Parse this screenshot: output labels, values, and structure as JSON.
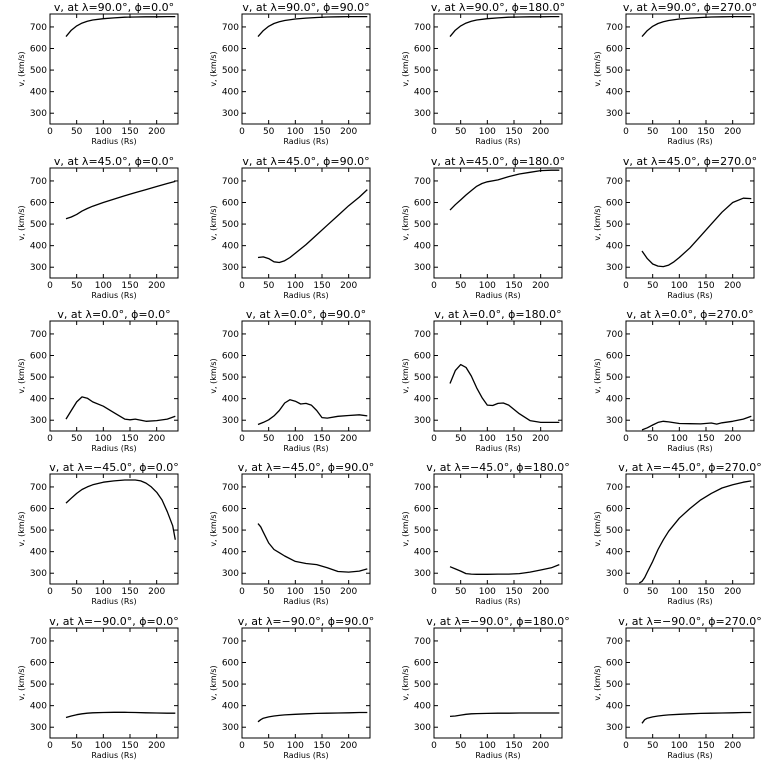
{
  "panel_titles": [
    "v, at λ=90.0°, ϕ=0.0°",
    "v, at λ=90.0°, ϕ=90.0°",
    "v, at λ=90.0°, ϕ=180.0°",
    "v, at λ=90.0°, ϕ=270.0°",
    "v, at λ=45.0°, ϕ=0.0°",
    "v, at λ=45.0°, ϕ=90.0°",
    "v, at λ=45.0°, ϕ=180.0°",
    "v, at λ=45.0°, ϕ=270.0°",
    "v, at λ=0.0°, ϕ=0.0°",
    "v, at λ=0.0°, ϕ=90.0°",
    "v, at λ=0.0°, ϕ=180.0°",
    "v, at λ=0.0°, ϕ=270.0°",
    "v, at λ=−45.0°, ϕ=0.0°",
    "v, at λ=−45.0°, ϕ=90.0°",
    "v, at λ=−45.0°, ϕ=180.0°",
    "v, at λ=−45.0°, ϕ=270.0°",
    "v, at λ=−90.0°, ϕ=0.0°",
    "v, at λ=−90.0°, ϕ=90.0°",
    "v, at λ=−90.0°, ϕ=180.0°",
    "v, at λ=−90.0°, ϕ=270.0°"
  ],
  "chart_data": {
    "type": "line",
    "layout": "5 rows x 4 columns of small-multiple panels",
    "xlabel": "Radius (Rs)",
    "ylabel": "v, (km/s)",
    "xlim": [
      0,
      240
    ],
    "ylim": [
      250,
      760
    ],
    "xticks": [
      0,
      50,
      100,
      150,
      200
    ],
    "yticks": [
      300,
      400,
      500,
      600,
      700
    ],
    "series": [
      {
        "x": [
          30,
          40,
          50,
          60,
          70,
          80,
          100,
          120,
          140,
          160,
          180,
          200,
          220,
          235
        ],
        "values": [
          655,
          685,
          705,
          718,
          726,
          732,
          738,
          742,
          745,
          746,
          747,
          747,
          748,
          748
        ]
      },
      {
        "x": [
          30,
          40,
          50,
          60,
          70,
          80,
          100,
          120,
          140,
          160,
          180,
          200,
          220,
          235
        ],
        "values": [
          655,
          683,
          703,
          716,
          724,
          730,
          737,
          741,
          744,
          746,
          747,
          748,
          748,
          748
        ]
      },
      {
        "x": [
          30,
          40,
          50,
          60,
          70,
          80,
          100,
          120,
          140,
          160,
          180,
          200,
          220,
          235
        ],
        "values": [
          655,
          685,
          705,
          718,
          726,
          732,
          738,
          742,
          745,
          746,
          747,
          747,
          748,
          748
        ]
      },
      {
        "x": [
          30,
          40,
          50,
          60,
          70,
          80,
          100,
          120,
          140,
          160,
          180,
          200,
          220,
          235
        ],
        "values": [
          655,
          683,
          703,
          716,
          724,
          730,
          737,
          741,
          744,
          746,
          747,
          748,
          748,
          748
        ]
      },
      {
        "x": [
          30,
          40,
          50,
          60,
          70,
          80,
          100,
          120,
          140,
          160,
          180,
          200,
          220,
          235
        ],
        "values": [
          525,
          533,
          545,
          560,
          572,
          583,
          600,
          616,
          631,
          646,
          660,
          674,
          688,
          698
        ]
      },
      {
        "x": [
          30,
          40,
          50,
          60,
          70,
          80,
          90,
          100,
          120,
          140,
          160,
          180,
          200,
          220,
          235
        ],
        "values": [
          345,
          348,
          340,
          325,
          322,
          330,
          345,
          365,
          405,
          450,
          495,
          540,
          585,
          625,
          660
        ]
      },
      {
        "x": [
          30,
          40,
          50,
          60,
          70,
          80,
          90,
          100,
          120,
          140,
          160,
          180,
          200,
          220,
          235
        ],
        "values": [
          565,
          590,
          612,
          635,
          655,
          675,
          688,
          696,
          705,
          720,
          732,
          740,
          748,
          750,
          750
        ]
      },
      {
        "x": [
          30,
          40,
          50,
          60,
          70,
          80,
          90,
          100,
          120,
          140,
          160,
          180,
          200,
          220,
          235
        ],
        "values": [
          375,
          340,
          315,
          305,
          303,
          310,
          325,
          345,
          390,
          445,
          500,
          555,
          600,
          620,
          618
        ]
      },
      {
        "x": [
          30,
          40,
          50,
          60,
          70,
          80,
          100,
          120,
          140,
          150,
          160,
          180,
          200,
          220,
          235
        ],
        "values": [
          305,
          345,
          385,
          408,
          402,
          385,
          365,
          335,
          305,
          302,
          305,
          295,
          298,
          305,
          318
        ]
      },
      {
        "x": [
          30,
          40,
          50,
          60,
          70,
          80,
          90,
          100,
          110,
          120,
          130,
          140,
          150,
          160,
          180,
          200,
          220,
          235
        ],
        "values": [
          280,
          290,
          302,
          320,
          345,
          380,
          395,
          388,
          375,
          378,
          370,
          345,
          312,
          310,
          318,
          322,
          325,
          320
        ]
      },
      {
        "x": [
          30,
          40,
          50,
          60,
          70,
          80,
          90,
          100,
          110,
          120,
          130,
          140,
          160,
          180,
          200,
          220,
          235
        ],
        "values": [
          470,
          530,
          558,
          545,
          505,
          450,
          405,
          370,
          368,
          378,
          380,
          370,
          330,
          298,
          290,
          290,
          290
        ]
      },
      {
        "x": [
          30,
          40,
          50,
          60,
          70,
          80,
          100,
          120,
          140,
          160,
          170,
          180,
          200,
          220,
          235
        ],
        "values": [
          255,
          265,
          278,
          290,
          295,
          292,
          285,
          284,
          283,
          287,
          282,
          288,
          295,
          305,
          318
        ]
      },
      {
        "x": [
          30,
          40,
          50,
          60,
          70,
          80,
          100,
          120,
          140,
          160,
          170,
          180,
          190,
          200,
          210,
          220,
          230,
          235
        ],
        "values": [
          625,
          648,
          670,
          688,
          700,
          710,
          722,
          728,
          732,
          732,
          728,
          718,
          700,
          675,
          640,
          585,
          520,
          455
        ]
      },
      {
        "x": [
          30,
          35,
          40,
          50,
          60,
          70,
          80,
          100,
          120,
          140,
          160,
          180,
          200,
          220,
          235
        ],
        "values": [
          530,
          515,
          490,
          440,
          410,
          395,
          380,
          355,
          345,
          340,
          325,
          308,
          305,
          310,
          320
        ]
      },
      {
        "x": [
          30,
          40,
          50,
          60,
          70,
          80,
          100,
          120,
          140,
          160,
          180,
          200,
          220,
          235
        ],
        "values": [
          330,
          320,
          310,
          298,
          296,
          295,
          295,
          296,
          296,
          298,
          305,
          315,
          325,
          340
        ]
      },
      {
        "x": [
          25,
          30,
          35,
          40,
          50,
          60,
          70,
          80,
          100,
          120,
          140,
          160,
          180,
          200,
          220,
          235
        ],
        "values": [
          255,
          262,
          280,
          305,
          355,
          410,
          455,
          495,
          555,
          600,
          640,
          670,
          695,
          710,
          722,
          728
        ]
      },
      {
        "x": [
          30,
          40,
          50,
          60,
          70,
          80,
          100,
          120,
          140,
          160,
          180,
          200,
          220,
          235
        ],
        "values": [
          345,
          352,
          358,
          362,
          365,
          367,
          368,
          369,
          369,
          368,
          367,
          366,
          365,
          365
        ]
      },
      {
        "x": [
          30,
          35,
          40,
          50,
          60,
          70,
          80,
          100,
          120,
          140,
          160,
          180,
          200,
          220,
          235
        ],
        "values": [
          325,
          335,
          342,
          348,
          352,
          355,
          357,
          360,
          362,
          364,
          365,
          366,
          367,
          368,
          368
        ]
      },
      {
        "x": [
          30,
          40,
          50,
          60,
          70,
          80,
          100,
          120,
          140,
          160,
          180,
          200,
          220,
          235
        ],
        "values": [
          350,
          352,
          356,
          360,
          362,
          363,
          364,
          365,
          365,
          366,
          366,
          366,
          366,
          366
        ]
      },
      {
        "x": [
          30,
          35,
          40,
          50,
          60,
          70,
          80,
          100,
          120,
          140,
          160,
          180,
          200,
          220,
          235
        ],
        "values": [
          318,
          335,
          342,
          348,
          352,
          355,
          357,
          360,
          362,
          364,
          365,
          366,
          367,
          368,
          368
        ]
      }
    ]
  }
}
